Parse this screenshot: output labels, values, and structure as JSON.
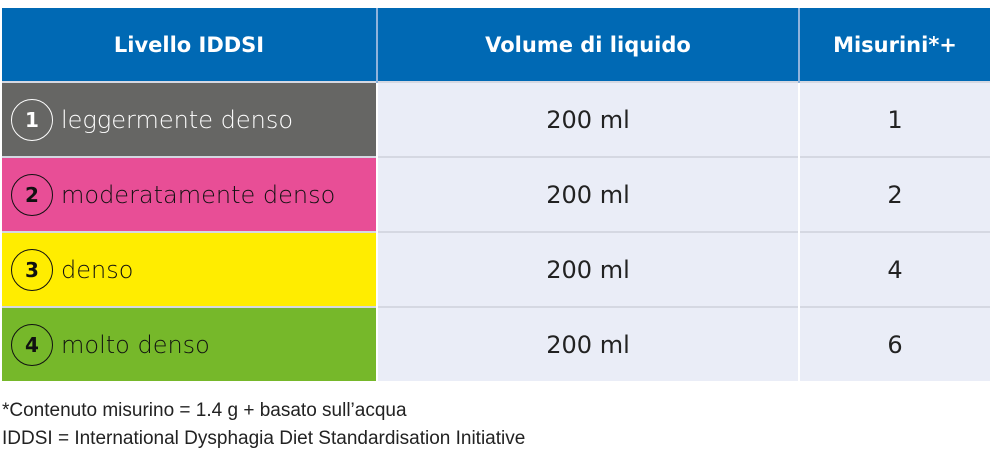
{
  "headers": [
    "Livello IDDSI",
    "Volume di liquido",
    "Misurini*+"
  ],
  "rows": [
    {
      "num": "1",
      "label": "leggermente denso",
      "volume": "200 ml",
      "scoops": "1",
      "color": "#666664",
      "text_color": "#ffffff"
    },
    {
      "num": "2",
      "label": "moderatamente denso",
      "volume": "200 ml",
      "scoops": "2",
      "color": "#e84e96",
      "text_color": "#111111"
    },
    {
      "num": "3",
      "label": "denso",
      "volume": "200 ml",
      "scoops": "4",
      "color": "#ffed00",
      "text_color": "#111111"
    },
    {
      "num": "4",
      "label": "molto denso",
      "volume": "200 ml",
      "scoops": "6",
      "color": "#76b82a",
      "text_color": "#111111"
    }
  ],
  "footnotes": [
    "*Contenuto misurino = 1.4 g + basato sull’acqua",
    "IDDSI = International Dysphagia Diet Standardisation Initiative"
  ]
}
